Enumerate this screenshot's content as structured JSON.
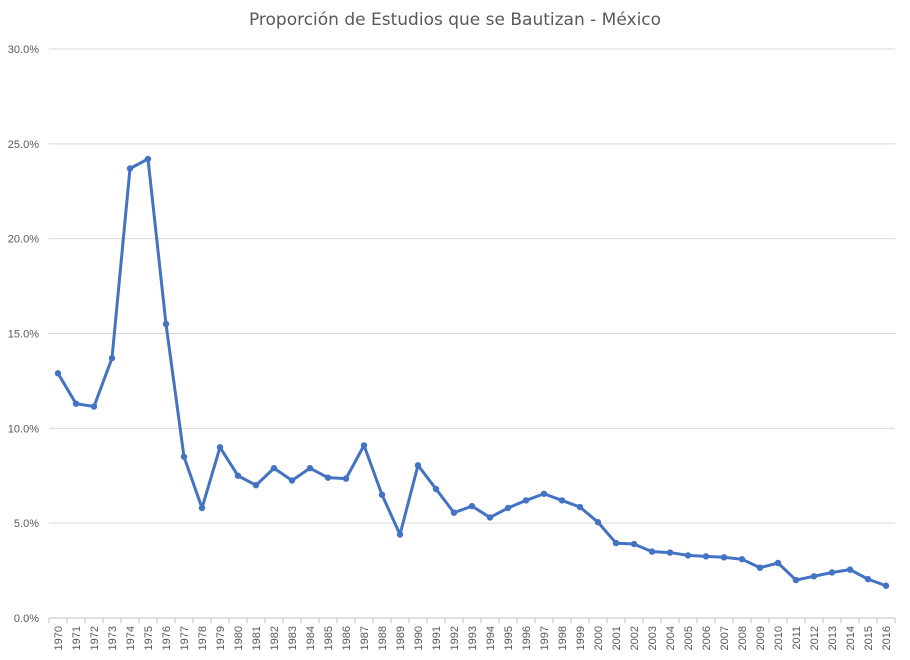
{
  "chart_data": {
    "type": "line",
    "title": "Proporción de Estudios que se Bautizan - México",
    "xlabel": "",
    "ylabel": "",
    "ylim": [
      0,
      30
    ],
    "y_ticks": [
      "0.0%",
      "5.0%",
      "10.0%",
      "15.0%",
      "20.0%",
      "25.0%",
      "30.0%"
    ],
    "y_tick_values": [
      0,
      5,
      10,
      15,
      20,
      25,
      30
    ],
    "grid": true,
    "legend": "none",
    "categories": [
      "1970",
      "1971",
      "1972",
      "1973",
      "1974",
      "1975",
      "1976",
      "1977",
      "1978",
      "1979",
      "1980",
      "1981",
      "1982",
      "1983",
      "1984",
      "1985",
      "1986",
      "1987",
      "1988",
      "1989",
      "1990",
      "1991",
      "1992",
      "1993",
      "1994",
      "1995",
      "1996",
      "1997",
      "1998",
      "1999",
      "2000",
      "2001",
      "2002",
      "2003",
      "2004",
      "2005",
      "2006",
      "2007",
      "2008",
      "2009",
      "2010",
      "2011",
      "2012",
      "2013",
      "2014",
      "2015",
      "2016"
    ],
    "series": [
      {
        "color": "#4472c4",
        "values": [
          12.9,
          11.3,
          11.15,
          13.7,
          23.7,
          24.2,
          15.5,
          8.5,
          5.8,
          9.0,
          7.5,
          7.0,
          7.9,
          7.25,
          7.9,
          7.4,
          7.35,
          9.1,
          6.5,
          4.4,
          8.05,
          6.8,
          5.55,
          5.9,
          5.3,
          5.8,
          6.2,
          6.55,
          6.2,
          5.85,
          5.05,
          3.95,
          3.9,
          3.5,
          3.45,
          3.3,
          3.25,
          3.2,
          3.1,
          2.65,
          2.9,
          2.0,
          2.2,
          2.4,
          2.55,
          2.05,
          1.7
        ]
      }
    ],
    "colors": {
      "grid": "#d9d9d9",
      "axis": "#bfbfbf",
      "text": "#595959"
    }
  }
}
